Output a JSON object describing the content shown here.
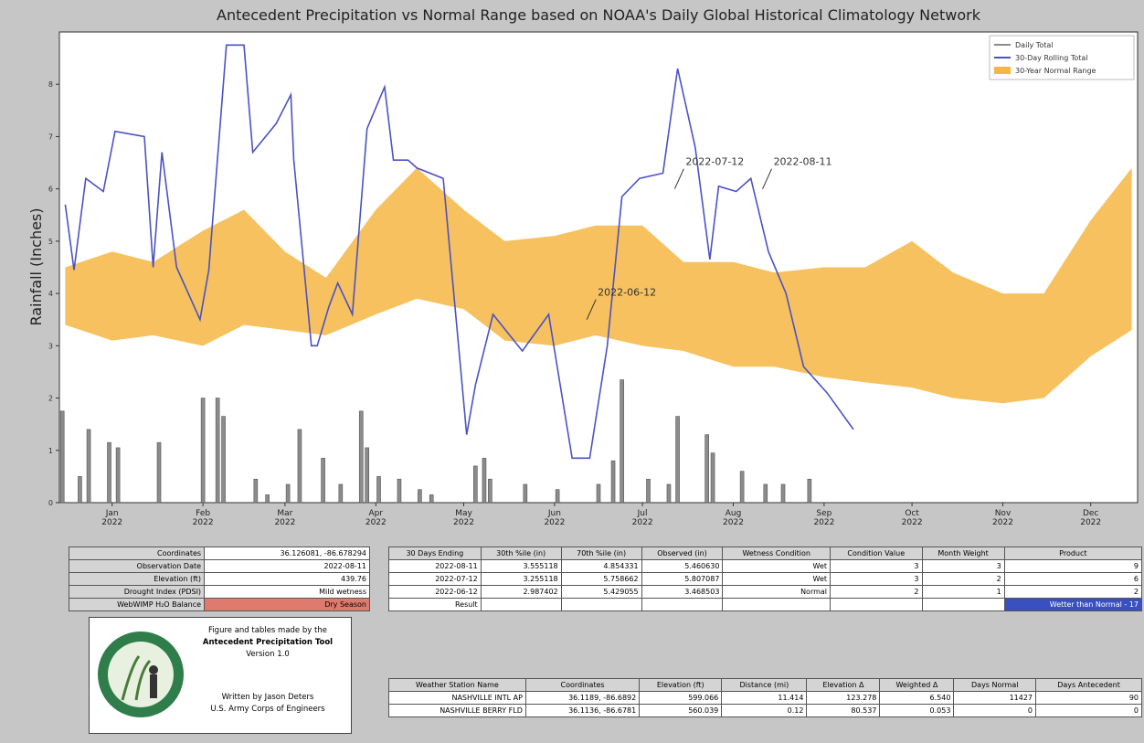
{
  "chart_data": {
    "type": "line",
    "title": "Antecedent Precipitation vs Normal Range based on NOAA's Daily Global Historical Climatology Network",
    "y_label": "Rainfall (Inches)",
    "xlim": [
      "2021-12-14",
      "2022-12-17"
    ],
    "xticks": [
      {
        "value": "2022-01-01",
        "label": "Jan\n2022"
      },
      {
        "value": "2022-02-01",
        "label": "Feb\n2022"
      },
      {
        "value": "2022-03-01",
        "label": "Mar\n2022"
      },
      {
        "value": "2022-04-01",
        "label": "Apr\n2022"
      },
      {
        "value": "2022-05-01",
        "label": "May\n2022"
      },
      {
        "value": "2022-06-01",
        "label": "Jun\n2022"
      },
      {
        "value": "2022-07-01",
        "label": "Jul\n2022"
      },
      {
        "value": "2022-08-01",
        "label": "Aug\n2022"
      },
      {
        "value": "2022-09-01",
        "label": "Sep\n2022"
      },
      {
        "value": "2022-10-01",
        "label": "Oct\n2022"
      },
      {
        "value": "2022-11-01",
        "label": "Nov\n2022"
      },
      {
        "value": "2022-12-01",
        "label": "Dec\n2022"
      }
    ],
    "ylim": [
      0,
      9
    ],
    "yticks": [
      0,
      1,
      2,
      3,
      4,
      5,
      6,
      7,
      8
    ],
    "legend": "upper right",
    "series": [
      {
        "name": "Daily Total",
        "type": "bar",
        "color": "#8c8c8c",
        "x": [
          "2021-12-15",
          "2021-12-21",
          "2021-12-24",
          "2021-12-31",
          "2022-01-03",
          "2022-01-17",
          "2022-02-01",
          "2022-02-06",
          "2022-02-08",
          "2022-02-19",
          "2022-02-23",
          "2022-03-02",
          "2022-03-06",
          "2022-03-14",
          "2022-03-20",
          "2022-03-27",
          "2022-03-29",
          "2022-04-02",
          "2022-04-09",
          "2022-04-16",
          "2022-04-20",
          "2022-05-05",
          "2022-05-08",
          "2022-05-10",
          "2022-05-22",
          "2022-06-02",
          "2022-06-16",
          "2022-06-21",
          "2022-06-24",
          "2022-07-03",
          "2022-07-10",
          "2022-07-13",
          "2022-07-23",
          "2022-07-25",
          "2022-08-04",
          "2022-08-12",
          "2022-08-18",
          "2022-08-27"
        ],
        "values": [
          1.75,
          0.5,
          1.4,
          1.15,
          1.05,
          1.15,
          2.0,
          2.0,
          1.65,
          0.45,
          0.15,
          0.35,
          1.4,
          0.85,
          0.35,
          1.75,
          1.05,
          0.5,
          0.45,
          0.25,
          0.15,
          0.7,
          0.85,
          0.45,
          0.35,
          0.25,
          0.35,
          0.8,
          2.35,
          0.45,
          0.35,
          1.65,
          1.3,
          0.95,
          0.6,
          0.35,
          0.35,
          0.45
        ]
      },
      {
        "name": "30-Day Rolling Total",
        "type": "line",
        "color": "#4b52c4",
        "x": [
          "2021-12-16",
          "2021-12-19",
          "2021-12-23",
          "2021-12-29",
          "2022-01-02",
          "2022-01-12",
          "2022-01-15",
          "2022-01-18",
          "2022-01-23",
          "2022-01-31",
          "2022-02-03",
          "2022-02-09",
          "2022-02-15",
          "2022-02-18",
          "2022-02-26",
          "2022-03-03",
          "2022-03-04",
          "2022-03-10",
          "2022-03-12",
          "2022-03-16",
          "2022-03-19",
          "2022-03-24",
          "2022-03-29",
          "2022-04-04",
          "2022-04-07",
          "2022-04-12",
          "2022-04-15",
          "2022-04-24",
          "2022-04-29",
          "2022-05-02",
          "2022-05-05",
          "2022-05-11",
          "2022-05-21",
          "2022-05-30",
          "2022-06-07",
          "2022-06-13",
          "2022-06-19",
          "2022-06-24",
          "2022-06-30",
          "2022-07-08",
          "2022-07-13",
          "2022-07-19",
          "2022-07-24",
          "2022-07-27",
          "2022-08-02",
          "2022-08-07",
          "2022-08-13",
          "2022-08-19",
          "2022-08-25",
          "2022-09-02",
          "2022-09-11"
        ],
        "values": [
          5.7,
          4.45,
          6.2,
          5.95,
          7.1,
          7.0,
          4.5,
          6.7,
          4.5,
          3.5,
          4.45,
          8.75,
          8.75,
          6.7,
          7.25,
          7.8,
          6.55,
          3.0,
          3.0,
          3.75,
          4.2,
          3.6,
          7.15,
          7.95,
          6.55,
          6.55,
          6.4,
          6.2,
          3.15,
          1.3,
          2.25,
          3.6,
          2.9,
          3.6,
          0.85,
          0.85,
          3.0,
          5.85,
          6.2,
          6.3,
          8.3,
          6.8,
          4.65,
          6.05,
          5.95,
          6.2,
          4.8,
          4.0,
          2.6,
          2.1,
          1.4
        ]
      },
      {
        "name": "30-Year Normal Range",
        "type": "band",
        "color": "#f5b642",
        "x": [
          "2021-12-16",
          "2022-01-01",
          "2022-01-15",
          "2022-02-01",
          "2022-02-15",
          "2022-03-01",
          "2022-03-15",
          "2022-04-01",
          "2022-04-15",
          "2022-05-01",
          "2022-05-15",
          "2022-06-01",
          "2022-06-15",
          "2022-07-01",
          "2022-07-15",
          "2022-08-01",
          "2022-08-15",
          "2022-09-01",
          "2022-09-15",
          "2022-10-01",
          "2022-10-15",
          "2022-11-01",
          "2022-11-15",
          "2022-12-01",
          "2022-12-15"
        ],
        "lower": [
          3.4,
          3.1,
          3.2,
          3.0,
          3.4,
          3.3,
          3.2,
          3.6,
          3.9,
          3.7,
          3.1,
          3.0,
          3.2,
          3.0,
          2.9,
          2.6,
          2.6,
          2.4,
          2.3,
          2.2,
          2.0,
          1.9,
          2.0,
          2.8,
          3.3
        ],
        "upper": [
          4.5,
          4.8,
          4.6,
          5.2,
          5.6,
          4.8,
          4.3,
          5.6,
          6.4,
          5.6,
          5.0,
          5.1,
          5.3,
          5.3,
          4.6,
          4.6,
          4.4,
          4.5,
          4.5,
          5.0,
          4.4,
          4.0,
          4.0,
          5.4,
          6.4
        ]
      }
    ],
    "annotations": [
      {
        "text": "2022-06-12",
        "x": "2022-06-12",
        "y": 3.5
      },
      {
        "text": "2022-07-12",
        "x": "2022-07-12",
        "y": 6.0
      },
      {
        "text": "2022-08-11",
        "x": "2022-08-11",
        "y": 6.0
      }
    ]
  },
  "info_table": {
    "rows": [
      [
        "Coordinates",
        "36.126081, -86.678294"
      ],
      [
        "Observation Date",
        "2022-08-11"
      ],
      [
        "Elevation (ft)",
        "439.76"
      ],
      [
        "Drought Index (PDSI)",
        "Mild wetness"
      ],
      [
        "WebWIMP H₂O Balance",
        "Dry Season"
      ]
    ]
  },
  "conditions_table": {
    "header": [
      "30 Days Ending",
      "30th %ile (in)",
      "70th %ile (in)",
      "Observed (in)",
      "Wetness Condition",
      "Condition Value",
      "Month Weight",
      "Product"
    ],
    "rows": [
      [
        "2022-08-11",
        "3.555118",
        "4.854331",
        "5.460630",
        "Wet",
        "3",
        "3",
        "9"
      ],
      [
        "2022-07-12",
        "3.255118",
        "5.758662",
        "5.807087",
        "Wet",
        "3",
        "2",
        "6"
      ],
      [
        "2022-06-12",
        "2.987402",
        "5.429055",
        "3.468503",
        "Normal",
        "2",
        "1",
        "2"
      ]
    ],
    "result_label": "Result",
    "result": "Wetter than Normal - 17"
  },
  "credit": {
    "lines": [
      "Figure and tables made by the",
      "Antecedent Precipitation Tool",
      "Version 1.0",
      "Written by Jason Deters",
      "U.S. Army Corps of Engineers"
    ]
  },
  "stations_table": {
    "header": [
      "Weather Station Name",
      "Coordinates",
      "Elevation (ft)",
      "Distance (mi)",
      "Elevation Δ",
      "Weighted Δ",
      "Days Normal",
      "Days Antecedent"
    ],
    "rows": [
      [
        "NASHVILLE INTL AP",
        "36.1189, -86.6892",
        "599.066",
        "11.414",
        "123.278",
        "6.540",
        "11427",
        "90"
      ],
      [
        "NASHVILLE BERRY FLD",
        "36.1136, -86.6781",
        "560.039",
        "0.12",
        "80.537",
        "0.053",
        "0",
        "0"
      ]
    ]
  }
}
